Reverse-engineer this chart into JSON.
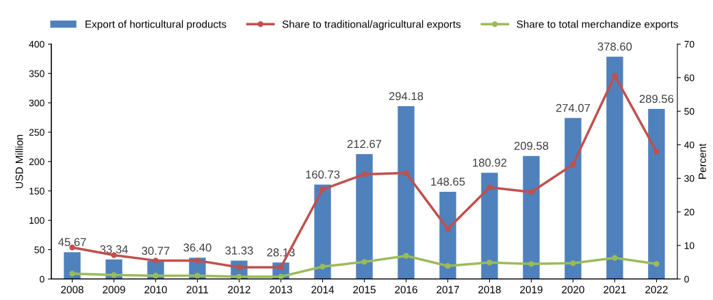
{
  "chart_data": {
    "type": "bar",
    "categories": [
      "2008",
      "2009",
      "2010",
      "2011",
      "2012",
      "2013",
      "2014",
      "2015",
      "2016",
      "2017",
      "2018",
      "2019",
      "2020",
      "2021",
      "2022"
    ],
    "ylabel": "USD Million",
    "y2label": "Percent",
    "ylim": [
      0,
      400
    ],
    "yticks": [
      0,
      50,
      100,
      150,
      200,
      250,
      300,
      350,
      400
    ],
    "y2lim": [
      0,
      70
    ],
    "y2ticks": [
      0,
      10,
      20,
      30,
      40,
      50,
      60,
      70
    ],
    "legend": "top",
    "grid": false,
    "marker": "circle",
    "series": [
      {
        "name": "Export of horticultural products",
        "color": "#4f81bd",
        "values": [
          45.67,
          33.34,
          30.77,
          36.4,
          31.33,
          28.13,
          160.73,
          212.67,
          294.18,
          148.65,
          180.92,
          209.58,
          274.07,
          378.6,
          289.56
        ],
        "value_labels": [
          "45.67",
          "33.34",
          "30.77",
          "36.40",
          "31.33",
          "28.13",
          "160.73",
          "212.67",
          "294.18",
          "148.65",
          "180.92",
          "209.58",
          "274.07",
          "378.60",
          "289.56"
        ]
      },
      {
        "name": "Share to traditional/agricultural exports",
        "type": "line",
        "axis": "y2",
        "color": "#c0504d",
        "values": [
          9.4,
          7.1,
          5.5,
          5.5,
          3.5,
          3.5,
          26.7,
          31.2,
          31.6,
          14.9,
          27.3,
          25.9,
          34.1,
          60.6,
          38.0
        ]
      },
      {
        "name": "Share to total merchandize exports",
        "type": "line",
        "axis": "y2",
        "color": "#9bbb59",
        "values": [
          1.6,
          1.2,
          1.0,
          1.0,
          0.7,
          0.7,
          3.7,
          5.1,
          6.9,
          3.9,
          4.9,
          4.5,
          4.7,
          6.3,
          4.5
        ]
      }
    ]
  }
}
